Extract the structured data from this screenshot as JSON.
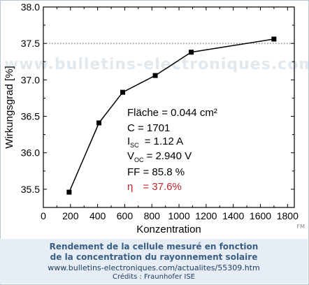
{
  "watermark": "www.bulletins-electroniques.com",
  "corner_mark": "FM",
  "chart_data": {
    "type": "line",
    "xlabel": "Konzentration",
    "ylabel": "Wirkungsgrad [%]",
    "xlim": [
      0,
      1850
    ],
    "ylim": [
      35.25,
      38.0
    ],
    "xticks": [
      0,
      200,
      400,
      600,
      800,
      1000,
      1200,
      1400,
      1600,
      1800
    ],
    "yticks": [
      35.5,
      36.0,
      36.5,
      37.0,
      37.5,
      38.0
    ],
    "ytick_labels": [
      "35.5",
      "36.0",
      "36.5",
      "37.0",
      "37.5",
      "38.0"
    ],
    "reference_line": {
      "y": 37.5,
      "style": "dotted"
    },
    "grid": false,
    "series": [
      {
        "x": [
          190,
          410,
          585,
          825,
          1090,
          1700
        ],
        "y": [
          35.46,
          36.41,
          36.83,
          37.06,
          37.38,
          37.56
        ],
        "color": "#000000",
        "marker": "square"
      }
    ],
    "annotations": {
      "area_label": "Fläche = 0.044 cm²",
      "c_label": "C = 1701",
      "isc_main": "I",
      "isc_sub": "SC",
      "isc_value": "= 1.12 A",
      "voc_main": "V",
      "voc_sub": "OC",
      "voc_value": "= 2.940 V",
      "ff_label": "FF = 85.8 %",
      "eta_symbol": "η",
      "eta_value": "= 37.6%",
      "eta_color": "#c0272d"
    }
  },
  "caption": {
    "title_line1": "Rendement de la cellule mesuré en fonction",
    "title_line2": "de la concentration du rayonnement solaire",
    "url": "www.bulletins-electroniques.com/actualites/55309.htm",
    "credit": "Crédits : Fraunhofer ISE"
  }
}
